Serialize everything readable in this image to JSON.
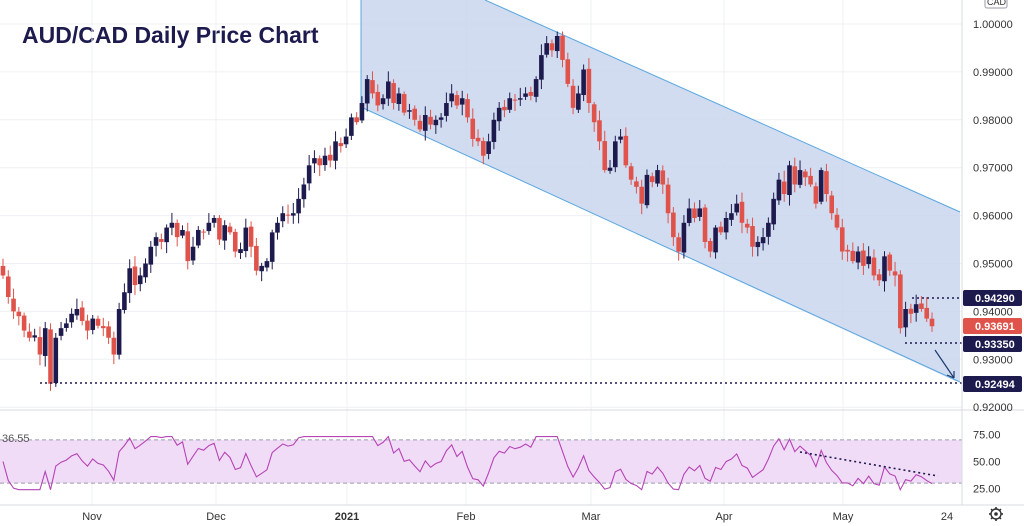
{
  "title": "AUD/CAD Daily Price Chart",
  "colors": {
    "up": "#1d1a4e",
    "down": "#e0534a",
    "channel_fill": "#c9d6ee",
    "channel_line": "#5aa7e0",
    "rsi_band": "#f1dcf8",
    "rsi_line": "#b544b5",
    "level_dotted": "#1d1a4e",
    "tag_dark": "#1d1a4e",
    "tag_red": "#e0534a"
  },
  "currency_label": "CAD",
  "chart_data": [
    {
      "type": "candlestick",
      "title": "AUD/CAD Daily Price Chart",
      "ylim": [
        0.9155,
        1.004
      ],
      "y_ticks": [
        "1.00000",
        "0.99000",
        "0.98000",
        "0.97000",
        "0.96000",
        "0.95000",
        "0.94000",
        "0.93000",
        "0.92000"
      ],
      "x_ticks": [
        {
          "label": "Nov",
          "bold": false
        },
        {
          "label": "Dec",
          "bold": false
        },
        {
          "label": "2021",
          "bold": true
        },
        {
          "label": "Feb",
          "bold": false
        },
        {
          "label": "Mar",
          "bold": false
        },
        {
          "label": "Apr",
          "bold": false
        },
        {
          "label": "May",
          "bold": false
        },
        {
          "label": "24",
          "bold": false
        }
      ],
      "closes": [
        0.9475,
        0.943,
        0.94,
        0.939,
        0.936,
        0.9345,
        0.935,
        0.931,
        0.9365,
        0.9249,
        0.9345,
        0.9365,
        0.9375,
        0.9395,
        0.9405,
        0.938,
        0.936,
        0.9385,
        0.937,
        0.9365,
        0.9345,
        0.931,
        0.9405,
        0.944,
        0.949,
        0.9455,
        0.9475,
        0.95,
        0.9535,
        0.9555,
        0.9545,
        0.9575,
        0.9585,
        0.9555,
        0.957,
        0.9505,
        0.9535,
        0.957,
        0.9565,
        0.9585,
        0.9595,
        0.955,
        0.958,
        0.9565,
        0.9525,
        0.953,
        0.9575,
        0.9535,
        0.9485,
        0.9495,
        0.9505,
        0.9565,
        0.9585,
        0.9605,
        0.96,
        0.9605,
        0.9635,
        0.9665,
        0.9705,
        0.972,
        0.9705,
        0.9725,
        0.9715,
        0.9755,
        0.9745,
        0.9765,
        0.9805,
        0.9795,
        0.9835,
        0.9885,
        0.9855,
        0.983,
        0.9845,
        0.988,
        0.9835,
        0.9855,
        0.9815,
        0.982,
        0.98,
        0.978,
        0.981,
        0.979,
        0.98,
        0.9805,
        0.9835,
        0.9855,
        0.983,
        0.9845,
        0.9805,
        0.976,
        0.9755,
        0.9725,
        0.9755,
        0.98,
        0.9825,
        0.982,
        0.9845,
        0.984,
        0.9845,
        0.9855,
        0.985,
        0.9885,
        0.9935,
        0.996,
        0.9945,
        0.9975,
        0.9925,
        0.9875,
        0.9825,
        0.9855,
        0.9905,
        0.9835,
        0.9795,
        0.9755,
        0.9695,
        0.97,
        0.9755,
        0.9765,
        0.9705,
        0.9675,
        0.966,
        0.9625,
        0.9685,
        0.967,
        0.9695,
        0.9665,
        0.9605,
        0.9555,
        0.9525,
        0.9585,
        0.9615,
        0.9595,
        0.9615,
        0.9545,
        0.9525,
        0.9575,
        0.9565,
        0.9595,
        0.9605,
        0.9625,
        0.9585,
        0.9575,
        0.9535,
        0.9545,
        0.9555,
        0.9585,
        0.9635,
        0.9675,
        0.9645,
        0.9705,
        0.9665,
        0.9695,
        0.968,
        0.9665,
        0.9625,
        0.9695,
        0.9645,
        0.9605,
        0.9575,
        0.9525,
        0.9525,
        0.9505,
        0.9525,
        0.9495,
        0.9515,
        0.9475,
        0.9465,
        0.9515,
        0.9485,
        0.9475,
        0.9365,
        0.9405,
        0.9395,
        0.9415,
        0.9405,
        0.9385,
        0.9369
      ],
      "levels": [
        "0.94290",
        "0.93350",
        "0.92494"
      ],
      "current_price": "0.93691",
      "rsi": {
        "label_value": "36.55",
        "y_ticks": [
          "75.00",
          "50.00",
          "25.00"
        ],
        "ylim": [
          20,
          80
        ],
        "band": [
          30,
          70
        ]
      }
    }
  ]
}
